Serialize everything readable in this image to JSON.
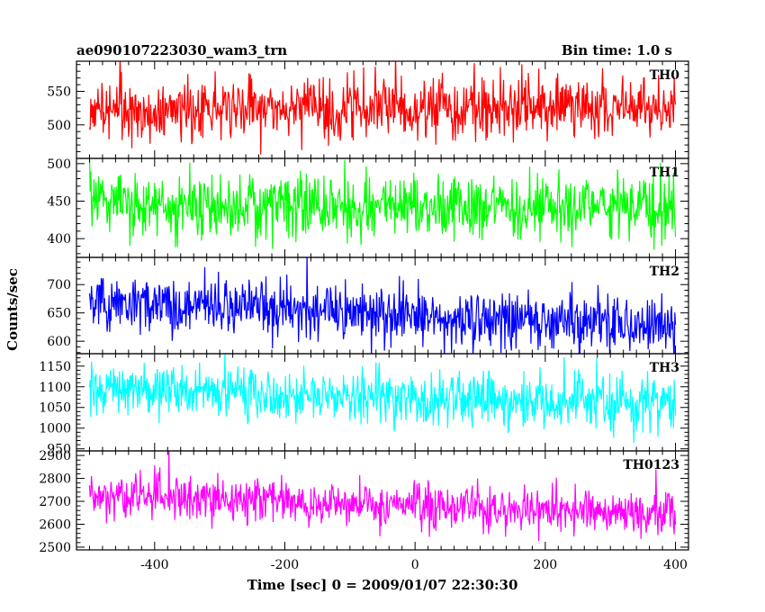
{
  "header": {
    "title": "ae090107223030_wam3_trn",
    "bin_time": "Bin time: 1.0 s"
  },
  "chart_data": {
    "type": "line",
    "xlabel": "Time [sec] 0 = 2009/01/07 22:30:30",
    "ylabel": "Counts/sec",
    "xlim": [
      -520,
      420
    ],
    "x_ticks": [
      -400,
      -200,
      0,
      200,
      400
    ],
    "x_range": [
      -500,
      400
    ],
    "bin_time_s": 1.0,
    "grid": false,
    "panels": [
      {
        "name": "TH0",
        "color": "#ff0000",
        "ylim": [
          450,
          595
        ],
        "y_ticks": [
          500,
          550
        ],
        "mean_start": 525,
        "mean_end": 525,
        "noise_std": 23
      },
      {
        "name": "TH1",
        "color": "#00ff00",
        "ylim": [
          375,
          507
        ],
        "y_ticks": [
          400,
          450,
          500
        ],
        "mean_start": 445,
        "mean_end": 440,
        "noise_std": 21
      },
      {
        "name": "TH2",
        "color": "#0000ff",
        "ylim": [
          578,
          748
        ],
        "y_ticks": [
          600,
          650,
          700
        ],
        "mean_start": 670,
        "mean_end": 625,
        "noise_std": 25
      },
      {
        "name": "TH3",
        "color": "#00ffff",
        "ylim": [
          945,
          1180
        ],
        "y_ticks": [
          950,
          1000,
          1050,
          1100,
          1150
        ],
        "mean_start": 1095,
        "mean_end": 1055,
        "noise_std": 33
      },
      {
        "name": "TH0123",
        "color": "#ff00ff",
        "ylim": [
          2488,
          2920
        ],
        "y_ticks": [
          2500,
          2600,
          2700,
          2800,
          2900
        ],
        "mean_start": 2735,
        "mean_end": 2640,
        "noise_std": 50
      }
    ]
  }
}
